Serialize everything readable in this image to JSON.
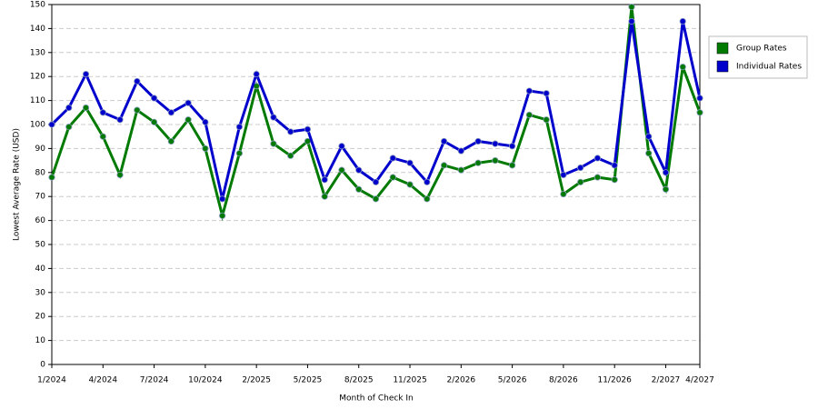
{
  "chart_data": {
    "type": "line",
    "x_label": "Month of Check In",
    "y_label": "Lowest Average Rate (USD)",
    "categories": [
      "1/2024",
      null,
      null,
      "4/2024",
      null,
      null,
      "7/2024",
      null,
      null,
      "10/2024",
      null,
      null,
      "2/2025",
      null,
      null,
      "5/2025",
      null,
      null,
      "8/2025",
      null,
      null,
      "11/2025",
      null,
      null,
      "2/2026",
      null,
      null,
      "5/2026",
      null,
      null,
      "8/2026",
      null,
      null,
      "11/2026",
      null,
      null,
      "2/2027",
      null,
      "4/2027"
    ],
    "series": [
      {
        "name": "Group Rates",
        "color": "#007a00",
        "values": [
          78,
          99,
          107,
          95,
          79,
          106,
          101,
          93,
          102,
          90,
          62,
          88,
          116,
          92,
          87,
          93,
          70,
          81,
          73,
          69,
          78,
          75,
          69,
          83,
          81,
          84,
          85,
          83,
          104,
          102,
          71,
          76,
          78,
          77,
          149,
          88,
          73,
          124,
          105
        ]
      },
      {
        "name": "Individual Rates",
        "color": "#0000cc",
        "values": [
          100,
          107,
          121,
          105,
          102,
          118,
          111,
          105,
          109,
          101,
          69,
          99,
          121,
          103,
          97,
          98,
          77,
          91,
          81,
          76,
          86,
          84,
          76,
          93,
          89,
          93,
          92,
          91,
          114,
          113,
          79,
          82,
          86,
          83,
          143,
          95,
          80,
          143,
          111
        ]
      }
    ],
    "ylim": [
      0,
      150
    ],
    "yticks": [
      0,
      10,
      20,
      30,
      40,
      50,
      60,
      70,
      80,
      90,
      100,
      110,
      120,
      130,
      140,
      150
    ],
    "grid": true,
    "legend": "right"
  }
}
